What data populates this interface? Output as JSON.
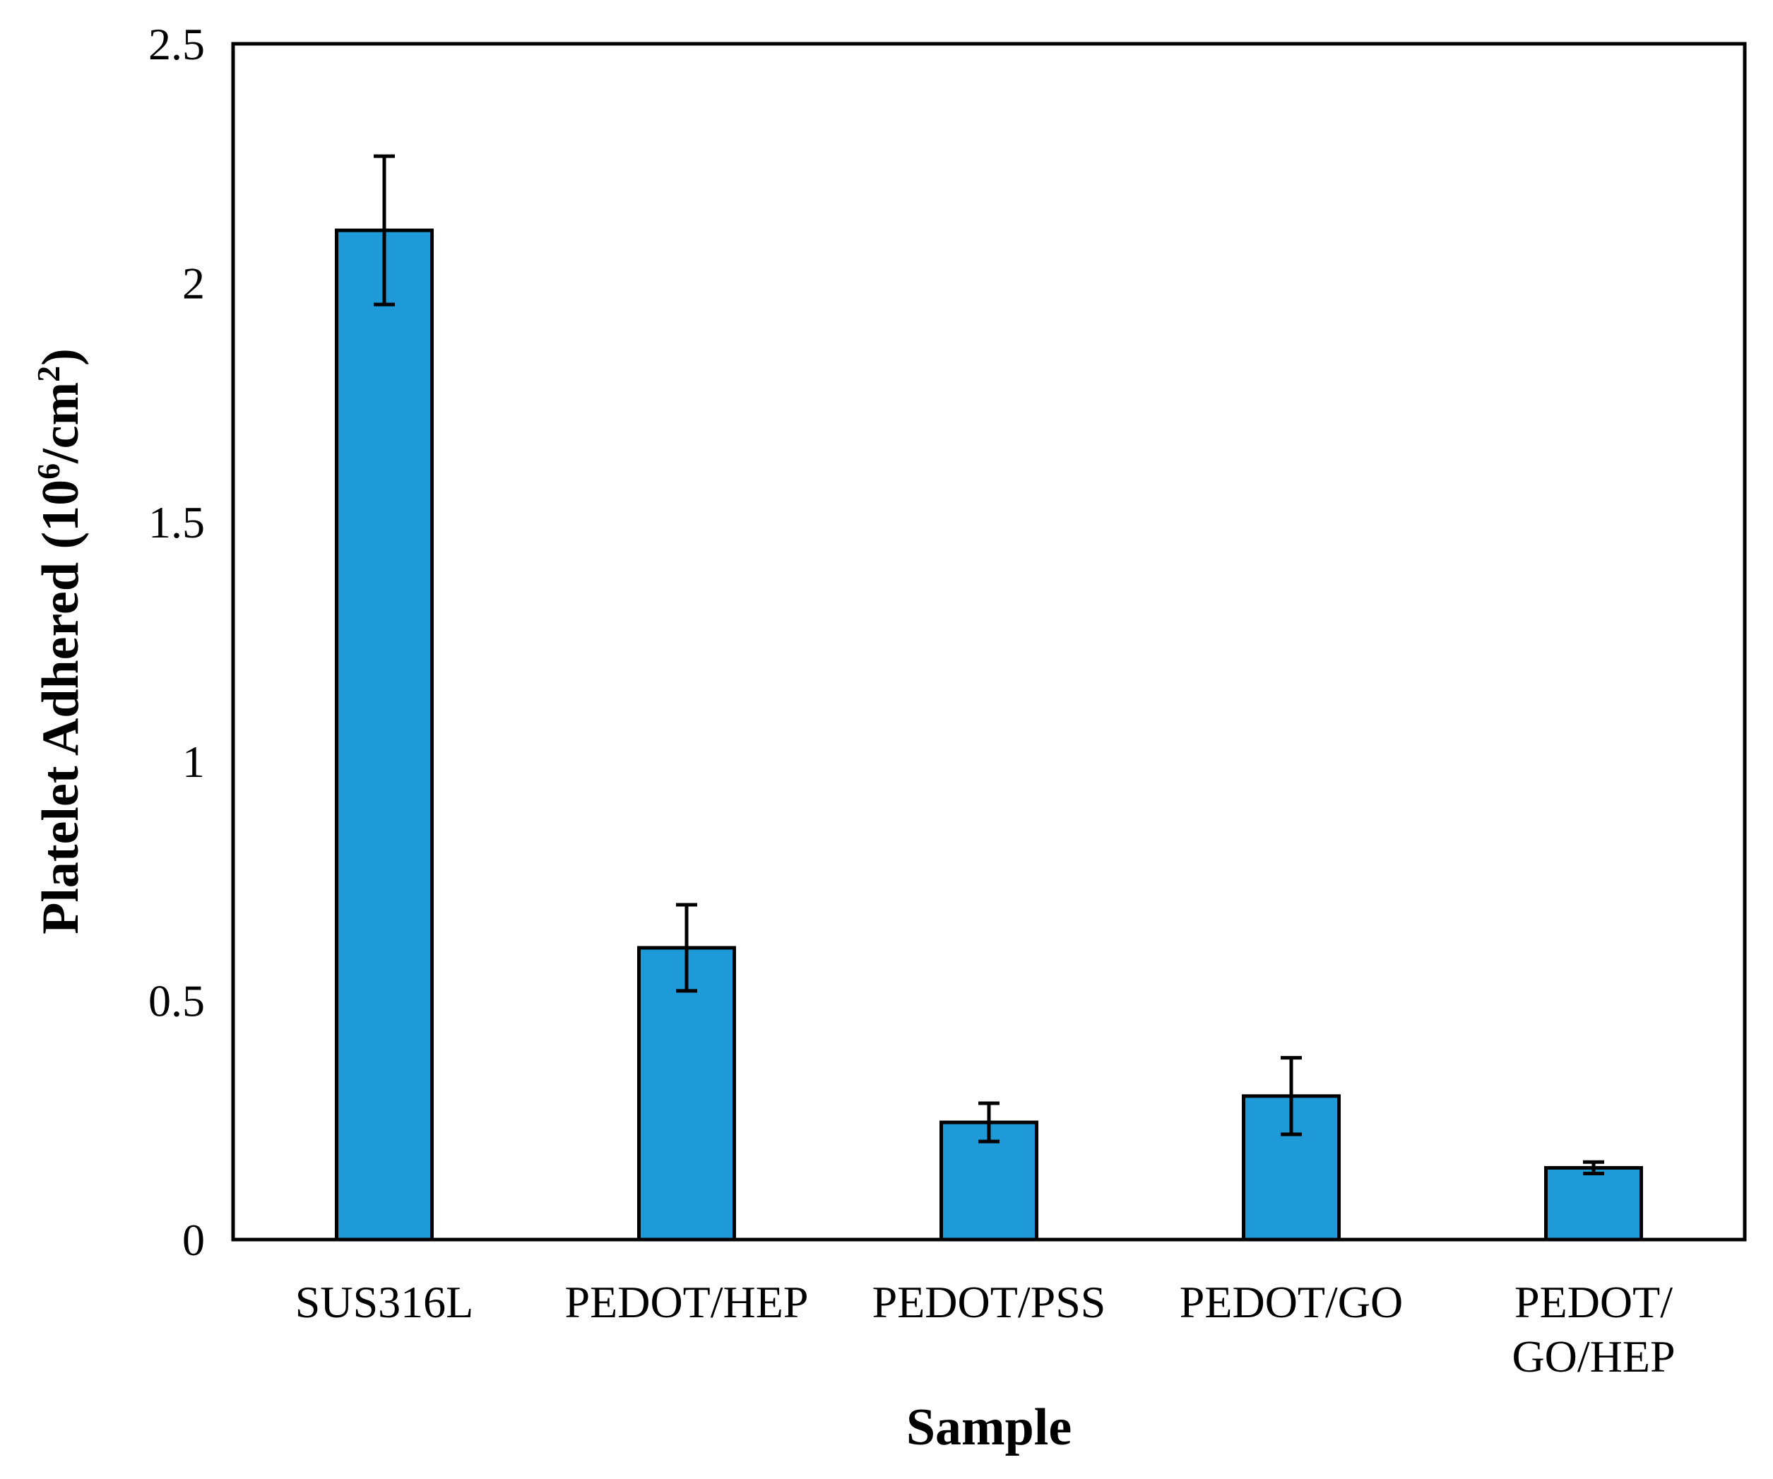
{
  "chart_data": {
    "type": "bar",
    "title": "",
    "xlabel": "Sample",
    "ylabel": {
      "prefix": "Platelet Adhered (10",
      "sup1": "6",
      "middle": "/cm",
      "sup2": "2",
      "suffix": ")"
    },
    "categories": [
      [
        "SUS316L"
      ],
      [
        "PEDOT/HEP"
      ],
      [
        "PEDOT/PSS"
      ],
      [
        "PEDOT/GO"
      ],
      [
        "PEDOT/",
        "GO/HEP"
      ]
    ],
    "values": [
      2.11,
      0.61,
      0.245,
      0.3,
      0.15
    ],
    "errors": [
      0.155,
      0.09,
      0.04,
      0.08,
      0.012
    ],
    "ylim": [
      0,
      2.5
    ],
    "yticks": [
      0,
      0.5,
      1,
      1.5,
      2,
      2.5
    ],
    "ytick_labels": [
      "0",
      "0.5",
      "1",
      "1.5",
      "2",
      "2.5"
    ],
    "grid": false,
    "legend": "none",
    "colors": {
      "bar_fill": "#1f9ad8",
      "bar_stroke": "#000000",
      "axis": "#000000"
    }
  }
}
